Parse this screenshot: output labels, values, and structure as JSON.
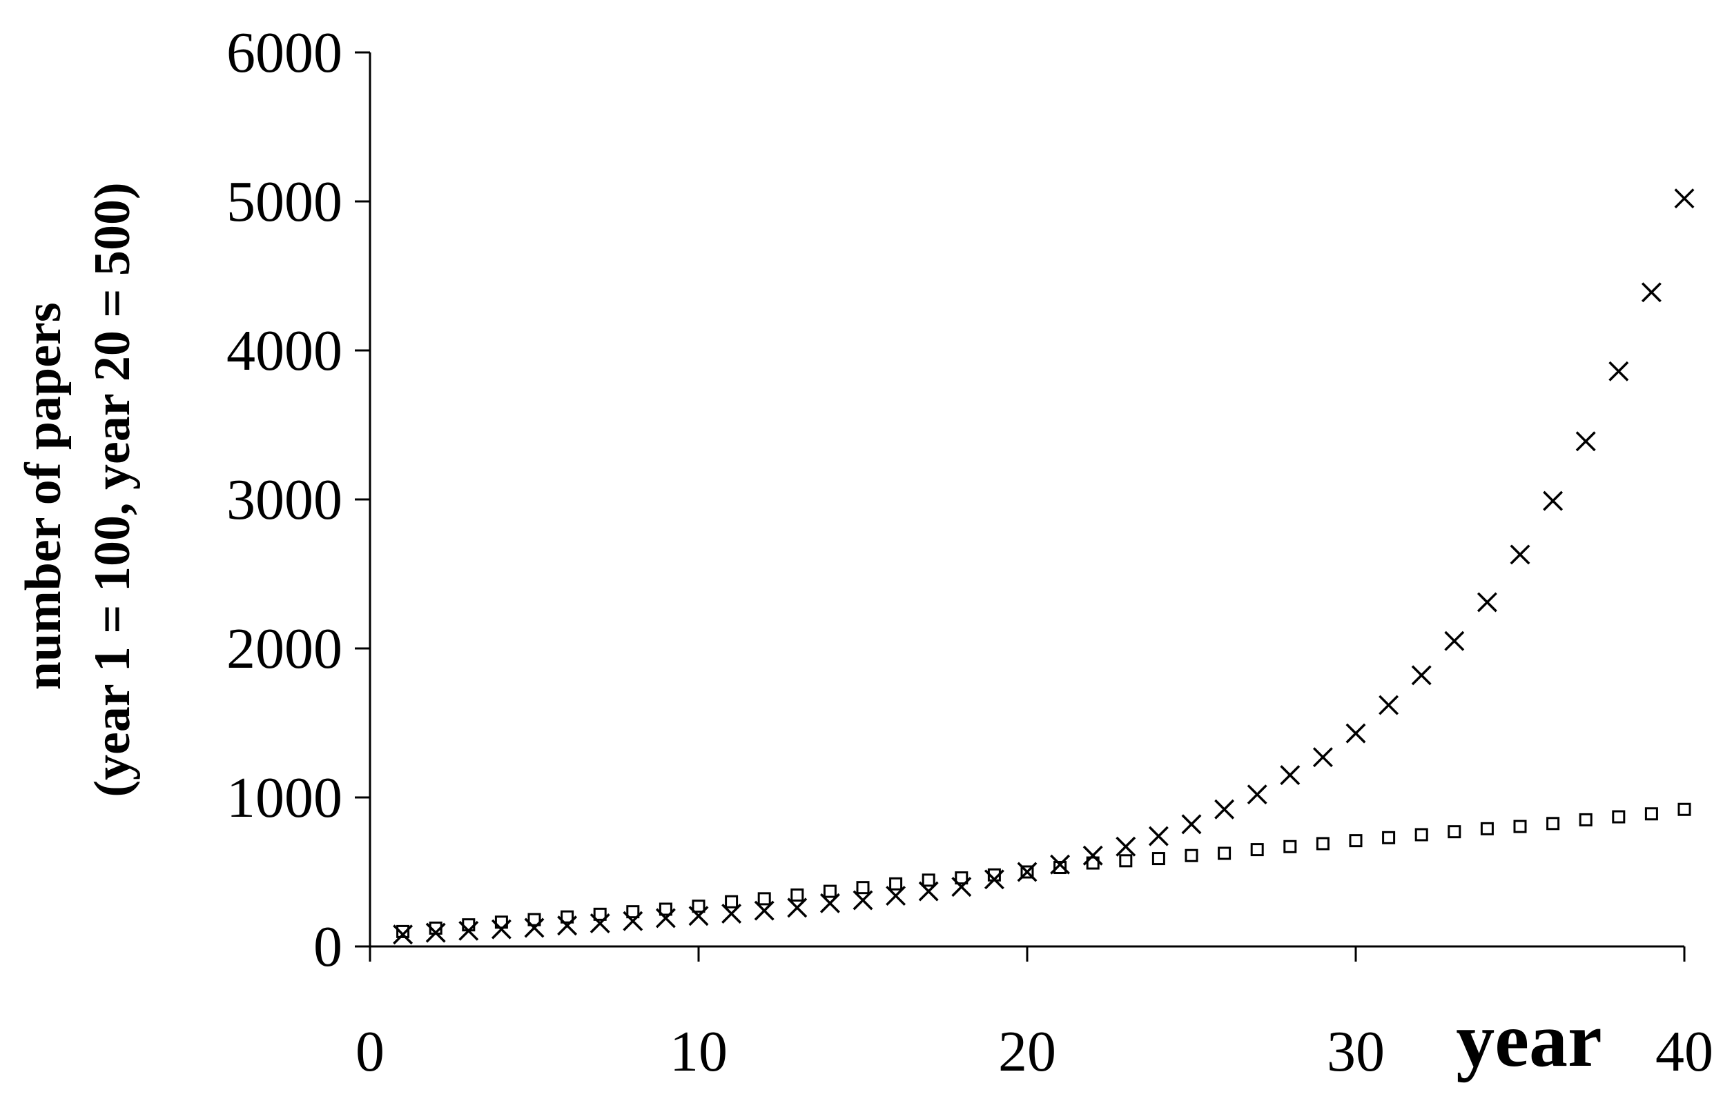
{
  "chart_data": {
    "type": "scatter",
    "title": "",
    "xlabel": "year",
    "ylabel_lines": [
      "number of papers",
      "(year 1 = 100, year 20 = 500)"
    ],
    "xlim": [
      0,
      40
    ],
    "ylim": [
      0,
      6000
    ],
    "x_ticks": [
      "0",
      "10",
      "20",
      "30",
      "40"
    ],
    "y_ticks": [
      "0",
      "1000",
      "2000",
      "3000",
      "4000",
      "5000",
      "6000"
    ],
    "grid": false,
    "legend": "none",
    "series": [
      {
        "marker": "square",
        "color": "#000000",
        "x": [
          1,
          2,
          3,
          4,
          5,
          6,
          7,
          8,
          9,
          10,
          11,
          12,
          13,
          14,
          15,
          16,
          17,
          18,
          19,
          20,
          21,
          22,
          23,
          24,
          25,
          26,
          27,
          28,
          29,
          30,
          31,
          32,
          33,
          34,
          35,
          36,
          37,
          38,
          39,
          40
        ],
        "y": [
          100,
          123,
          145,
          163,
          180,
          198,
          216,
          233,
          250,
          270,
          300,
          320,
          345,
          370,
          395,
          420,
          445,
          460,
          480,
          500,
          530,
          560,
          575,
          590,
          610,
          625,
          650,
          670,
          690,
          710,
          730,
          750,
          770,
          790,
          805,
          825,
          850,
          870,
          890,
          920
        ]
      },
      {
        "marker": "x",
        "color": "#000000",
        "x": [
          1,
          2,
          3,
          4,
          5,
          6,
          7,
          8,
          9,
          10,
          11,
          12,
          13,
          14,
          15,
          16,
          17,
          18,
          19,
          20,
          21,
          22,
          23,
          24,
          25,
          26,
          27,
          28,
          29,
          30,
          31,
          32,
          33,
          34,
          35,
          36,
          37,
          38,
          39,
          40
        ],
        "y": [
          80,
          92,
          105,
          115,
          125,
          140,
          155,
          170,
          190,
          205,
          220,
          240,
          260,
          290,
          310,
          340,
          370,
          400,
          450,
          500,
          550,
          610,
          670,
          740,
          820,
          920,
          1020,
          1150,
          1270,
          1430,
          1620,
          1820,
          2050,
          2310,
          2630,
          2990,
          3390,
          3860,
          4390,
          5020
        ]
      }
    ]
  }
}
